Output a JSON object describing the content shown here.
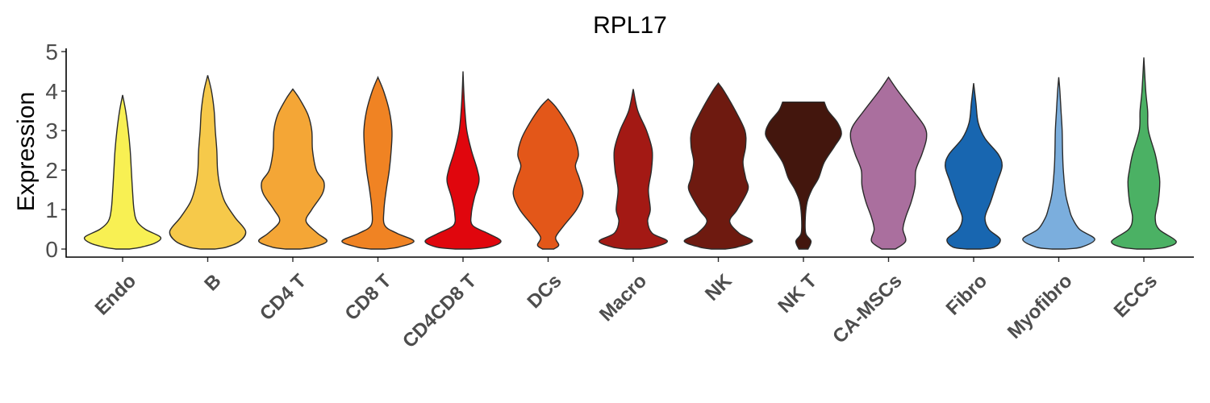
{
  "chart_data": {
    "type": "violin",
    "title": "RPL17",
    "ylabel": "Expression",
    "xlabel": "",
    "ylim": [
      0,
      5
    ],
    "yticks": [
      "0",
      "1",
      "2",
      "3",
      "4",
      "5"
    ],
    "grid": false,
    "legend": "none",
    "categories": [
      {
        "name": "Endo",
        "color": "#F8F053",
        "max": 3.9,
        "profile": [
          [
            0,
            0.18
          ],
          [
            0.05,
            0.5
          ],
          [
            0.15,
            0.85
          ],
          [
            0.3,
            1.0
          ],
          [
            0.5,
            0.6
          ],
          [
            0.7,
            0.38
          ],
          [
            1.0,
            0.3
          ],
          [
            1.5,
            0.26
          ],
          [
            2.0,
            0.23
          ],
          [
            2.5,
            0.2
          ],
          [
            3.0,
            0.15
          ],
          [
            3.5,
            0.08
          ],
          [
            3.9,
            0.0
          ]
        ]
      },
      {
        "name": "B",
        "color": "#F6C94A",
        "max": 4.4,
        "profile": [
          [
            0,
            0.18
          ],
          [
            0.05,
            0.5
          ],
          [
            0.2,
            0.85
          ],
          [
            0.45,
            1.0
          ],
          [
            0.8,
            0.72
          ],
          [
            1.2,
            0.45
          ],
          [
            1.6,
            0.32
          ],
          [
            2.0,
            0.26
          ],
          [
            2.5,
            0.24
          ],
          [
            3.0,
            0.2
          ],
          [
            3.5,
            0.17
          ],
          [
            4.0,
            0.1
          ],
          [
            4.4,
            0.0
          ]
        ]
      },
      {
        "name": "CD4 T",
        "color": "#F4A636",
        "max": 4.05,
        "profile": [
          [
            0,
            0.18
          ],
          [
            0.05,
            0.55
          ],
          [
            0.2,
            0.9
          ],
          [
            0.4,
            0.65
          ],
          [
            0.7,
            0.35
          ],
          [
            1.0,
            0.5
          ],
          [
            1.4,
            0.78
          ],
          [
            1.7,
            0.82
          ],
          [
            2.0,
            0.62
          ],
          [
            2.5,
            0.52
          ],
          [
            3.0,
            0.5
          ],
          [
            3.4,
            0.4
          ],
          [
            3.8,
            0.18
          ],
          [
            4.05,
            0.0
          ]
        ]
      },
      {
        "name": "CD8 T",
        "color": "#F08323",
        "max": 4.35,
        "profile": [
          [
            0,
            0.18
          ],
          [
            0.05,
            0.55
          ],
          [
            0.2,
            0.95
          ],
          [
            0.4,
            0.5
          ],
          [
            0.6,
            0.18
          ],
          [
            1.0,
            0.16
          ],
          [
            1.5,
            0.22
          ],
          [
            2.0,
            0.3
          ],
          [
            2.5,
            0.35
          ],
          [
            3.0,
            0.37
          ],
          [
            3.5,
            0.3
          ],
          [
            4.0,
            0.15
          ],
          [
            4.35,
            0.0
          ]
        ]
      },
      {
        "name": "CD4CD8 T",
        "color": "#E0060D",
        "max": 4.5,
        "profile": [
          [
            0,
            0.2
          ],
          [
            0.05,
            0.7
          ],
          [
            0.2,
            1.0
          ],
          [
            0.4,
            0.65
          ],
          [
            0.6,
            0.25
          ],
          [
            0.9,
            0.22
          ],
          [
            1.3,
            0.3
          ],
          [
            1.7,
            0.42
          ],
          [
            2.0,
            0.38
          ],
          [
            2.5,
            0.22
          ],
          [
            3.0,
            0.1
          ],
          [
            3.5,
            0.05
          ],
          [
            4.0,
            0.02
          ],
          [
            4.5,
            0.0
          ]
        ]
      },
      {
        "name": "DCs",
        "color": "#E35719",
        "max": 3.8,
        "profile": [
          [
            0,
            0.15
          ],
          [
            0.1,
            0.28
          ],
          [
            0.3,
            0.2
          ],
          [
            0.6,
            0.42
          ],
          [
            1.0,
            0.75
          ],
          [
            1.4,
            0.92
          ],
          [
            1.8,
            0.82
          ],
          [
            2.1,
            0.72
          ],
          [
            2.4,
            0.8
          ],
          [
            2.8,
            0.7
          ],
          [
            3.2,
            0.48
          ],
          [
            3.6,
            0.2
          ],
          [
            3.8,
            0.0
          ]
        ]
      },
      {
        "name": "Macro",
        "color": "#A31914",
        "max": 4.05,
        "profile": [
          [
            0,
            0.18
          ],
          [
            0.05,
            0.55
          ],
          [
            0.2,
            0.9
          ],
          [
            0.4,
            0.5
          ],
          [
            0.7,
            0.38
          ],
          [
            1.0,
            0.45
          ],
          [
            1.5,
            0.4
          ],
          [
            2.0,
            0.48
          ],
          [
            2.5,
            0.5
          ],
          [
            3.0,
            0.35
          ],
          [
            3.5,
            0.12
          ],
          [
            4.05,
            0.0
          ]
        ]
      },
      {
        "name": "NK",
        "color": "#6E1A10",
        "max": 4.2,
        "profile": [
          [
            0,
            0.18
          ],
          [
            0.05,
            0.5
          ],
          [
            0.2,
            0.9
          ],
          [
            0.4,
            0.55
          ],
          [
            0.7,
            0.3
          ],
          [
            1.0,
            0.5
          ],
          [
            1.5,
            0.78
          ],
          [
            1.8,
            0.72
          ],
          [
            2.2,
            0.65
          ],
          [
            2.6,
            0.72
          ],
          [
            3.0,
            0.7
          ],
          [
            3.5,
            0.45
          ],
          [
            4.0,
            0.15
          ],
          [
            4.2,
            0.0
          ]
        ]
      },
      {
        "name": "NK T",
        "color": "#43160D",
        "max": 3.72,
        "profile": [
          [
            0,
            0.12
          ],
          [
            0.2,
            0.2
          ],
          [
            0.4,
            0.06
          ],
          [
            0.8,
            0.05
          ],
          [
            1.2,
            0.1
          ],
          [
            1.5,
            0.22
          ],
          [
            1.8,
            0.4
          ],
          [
            2.2,
            0.55
          ],
          [
            2.6,
            0.82
          ],
          [
            2.9,
            1.0
          ],
          [
            3.2,
            0.9
          ],
          [
            3.5,
            0.65
          ],
          [
            3.72,
            0.55
          ]
        ]
      },
      {
        "name": "CA-MSCs",
        "color": "#AA6F9E",
        "max": 4.35,
        "profile": [
          [
            0,
            0.18
          ],
          [
            0.2,
            0.45
          ],
          [
            0.5,
            0.38
          ],
          [
            0.8,
            0.45
          ],
          [
            1.2,
            0.6
          ],
          [
            1.6,
            0.7
          ],
          [
            2.0,
            0.72
          ],
          [
            2.4,
            0.88
          ],
          [
            2.8,
            1.0
          ],
          [
            3.1,
            0.95
          ],
          [
            3.5,
            0.65
          ],
          [
            4.0,
            0.25
          ],
          [
            4.35,
            0.0
          ]
        ]
      },
      {
        "name": "Fibro",
        "color": "#1866B0",
        "max": 4.2,
        "profile": [
          [
            0,
            0.18
          ],
          [
            0.05,
            0.55
          ],
          [
            0.25,
            0.7
          ],
          [
            0.5,
            0.4
          ],
          [
            0.8,
            0.3
          ],
          [
            1.2,
            0.45
          ],
          [
            1.7,
            0.62
          ],
          [
            2.1,
            0.75
          ],
          [
            2.4,
            0.65
          ],
          [
            2.8,
            0.3
          ],
          [
            3.2,
            0.12
          ],
          [
            3.7,
            0.06
          ],
          [
            4.2,
            0.0
          ]
        ]
      },
      {
        "name": "Myofibro",
        "color": "#7BAEDD",
        "max": 4.35,
        "profile": [
          [
            0,
            0.18
          ],
          [
            0.05,
            0.6
          ],
          [
            0.25,
            0.95
          ],
          [
            0.5,
            0.55
          ],
          [
            0.8,
            0.35
          ],
          [
            1.0,
            0.28
          ],
          [
            1.4,
            0.18
          ],
          [
            2.0,
            0.12
          ],
          [
            2.5,
            0.1
          ],
          [
            3.0,
            0.09
          ],
          [
            3.5,
            0.06
          ],
          [
            4.0,
            0.03
          ],
          [
            4.35,
            0.0
          ]
        ]
      },
      {
        "name": "ECCs",
        "color": "#4BB164",
        "max": 4.85,
        "profile": [
          [
            0,
            0.18
          ],
          [
            0.05,
            0.6
          ],
          [
            0.2,
            0.85
          ],
          [
            0.5,
            0.4
          ],
          [
            0.8,
            0.3
          ],
          [
            1.2,
            0.38
          ],
          [
            1.7,
            0.42
          ],
          [
            2.0,
            0.38
          ],
          [
            2.4,
            0.3
          ],
          [
            3.0,
            0.12
          ],
          [
            3.5,
            0.1
          ],
          [
            4.0,
            0.05
          ],
          [
            4.85,
            0.0
          ]
        ]
      }
    ]
  }
}
